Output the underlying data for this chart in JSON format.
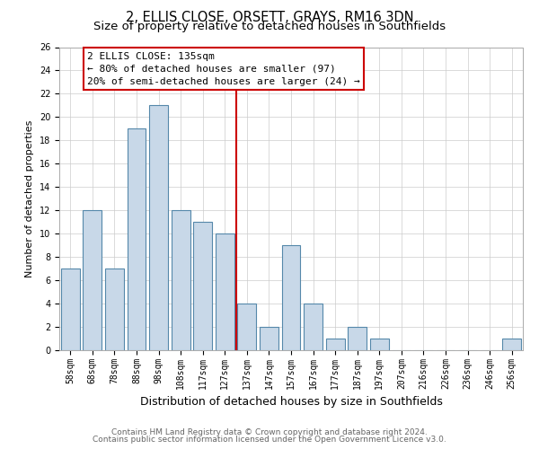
{
  "title": "2, ELLIS CLOSE, ORSETT, GRAYS, RM16 3DN",
  "subtitle": "Size of property relative to detached houses in Southfields",
  "xlabel": "Distribution of detached houses by size in Southfields",
  "ylabel": "Number of detached properties",
  "bar_labels": [
    "58sqm",
    "68sqm",
    "78sqm",
    "88sqm",
    "98sqm",
    "108sqm",
    "117sqm",
    "127sqm",
    "137sqm",
    "147sqm",
    "157sqm",
    "167sqm",
    "177sqm",
    "187sqm",
    "197sqm",
    "207sqm",
    "216sqm",
    "226sqm",
    "236sqm",
    "246sqm",
    "256sqm"
  ],
  "bar_values": [
    7,
    12,
    7,
    19,
    21,
    12,
    11,
    10,
    4,
    2,
    9,
    4,
    1,
    2,
    1,
    0,
    0,
    0,
    0,
    0,
    1
  ],
  "bar_color": "#c8d8e8",
  "bar_edge_color": "#5588aa",
  "vline_color": "#cc0000",
  "vline_x_index": 8,
  "ylim": [
    0,
    26
  ],
  "yticks": [
    0,
    2,
    4,
    6,
    8,
    10,
    12,
    14,
    16,
    18,
    20,
    22,
    24,
    26
  ],
  "annotation_title": "2 ELLIS CLOSE: 135sqm",
  "annotation_line1": "← 80% of detached houses are smaller (97)",
  "annotation_line2": "20% of semi-detached houses are larger (24) →",
  "annotation_box_color": "#ffffff",
  "annotation_box_edge": "#cc0000",
  "footer1": "Contains HM Land Registry data © Crown copyright and database right 2024.",
  "footer2": "Contains public sector information licensed under the Open Government Licence v3.0.",
  "title_fontsize": 10.5,
  "subtitle_fontsize": 9.5,
  "xlabel_fontsize": 9,
  "ylabel_fontsize": 8,
  "tick_fontsize": 7,
  "annotation_fontsize": 8,
  "footer_fontsize": 6.5
}
